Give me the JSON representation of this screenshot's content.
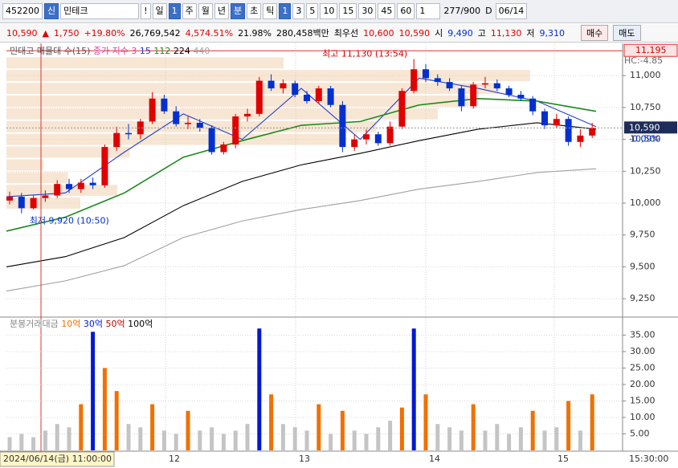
{
  "toolbar": {
    "code": "452200",
    "badge": "신",
    "name": "민테크",
    "alert": "!",
    "periods": [
      "일",
      "1",
      "주",
      "월",
      "년",
      "분",
      "초",
      "틱"
    ],
    "minutes": [
      "1",
      "3",
      "5",
      "10",
      "15",
      "30",
      "45",
      "60"
    ],
    "count": "1",
    "range": "277/900",
    "flag": "D",
    "date": "06/14"
  },
  "quote": {
    "price": "10,590",
    "arrow": "▲",
    "change": "1,750",
    "rate": "+19.80%",
    "volume": "26,769,542",
    "vol_rate": "4,574.51%",
    "turnover": "21.98%",
    "amount": "280,458백만",
    "best": "최우선",
    "ask": "10,600",
    "bid": "10,590",
    "open_label": "시",
    "open": "9,490",
    "high_label": "고",
    "high": "11,130",
    "low_label": "저",
    "low": "9,310",
    "buy": "매수",
    "sell": "매도"
  },
  "chart_data": [
    {
      "type": "candlestick",
      "title": "민대고 매물대 수(15)",
      "indicator_labels": [
        "종가 지수",
        "3"
      ],
      "open": [
        10020,
        10050,
        9960,
        10040,
        10060,
        10150,
        10110,
        10160,
        10140,
        10440,
        10550,
        10540,
        10640,
        10820,
        10720,
        10620,
        10630,
        10590,
        10400,
        10460,
        10680,
        10700,
        10960,
        10900,
        10940,
        10850,
        10800,
        10900,
        10770,
        10440,
        10500,
        10540,
        10470,
        10600,
        10880,
        11050,
        10980,
        10950,
        10900,
        10760,
        10930,
        10940,
        10900,
        10850,
        10820,
        10720,
        10610,
        10660,
        10480,
        10530
      ],
      "high": [
        10090,
        10080,
        10060,
        10100,
        10180,
        10190,
        10190,
        10200,
        10460,
        10600,
        10620,
        10660,
        10870,
        10850,
        10760,
        10680,
        10660,
        10610,
        10480,
        10700,
        10740,
        10990,
        11010,
        10970,
        10960,
        10880,
        10920,
        10920,
        10800,
        10540,
        10580,
        10560,
        10640,
        10900,
        11130,
        11090,
        11010,
        10980,
        10920,
        10950,
        10990,
        10970,
        10920,
        10880,
        10840,
        10740,
        10700,
        10680,
        10580,
        10630
      ],
      "low": [
        9990,
        9920,
        9950,
        10010,
        10040,
        10080,
        10080,
        10110,
        10120,
        10410,
        10500,
        10500,
        10620,
        10700,
        10600,
        10580,
        10560,
        10380,
        10380,
        10430,
        10640,
        10680,
        10880,
        10860,
        10830,
        10780,
        10780,
        10750,
        10400,
        10410,
        10460,
        10450,
        10450,
        10580,
        10860,
        10950,
        10920,
        10880,
        10720,
        10740,
        10900,
        10880,
        10830,
        10800,
        10690,
        10580,
        10590,
        10450,
        10440,
        10510
      ],
      "close": [
        10050,
        9960,
        10040,
        10060,
        10150,
        10110,
        10160,
        10140,
        10440,
        10550,
        10540,
        10640,
        10820,
        10720,
        10620,
        10630,
        10590,
        10400,
        10460,
        10680,
        10700,
        10960,
        10900,
        10940,
        10850,
        10800,
        10900,
        10770,
        10440,
        10500,
        10540,
        10470,
        10600,
        10880,
        11050,
        10980,
        10950,
        10900,
        10760,
        10930,
        10940,
        10900,
        10850,
        10820,
        10720,
        10610,
        10660,
        10480,
        10530,
        10590
      ],
      "up_color": "#e00000",
      "down_color": "#0030d0",
      "series": [
        {
          "name": "15",
          "color": "#2040d0",
          "values": [
            10050,
            10080,
            10400,
            10700,
            10500,
            10900,
            10500,
            10980,
            10900,
            10800,
            10600
          ]
        },
        {
          "name": "112",
          "color": "#1a8a1a",
          "values": [
            9780,
            9890,
            10080,
            10360,
            10490,
            10610,
            10640,
            10770,
            10820,
            10800,
            10720
          ]
        },
        {
          "name": "224",
          "color": "#000000",
          "values": [
            9500,
            9580,
            9730,
            9980,
            10170,
            10300,
            10390,
            10490,
            10580,
            10630,
            10580
          ]
        },
        {
          "name": "440",
          "color": "#a0a0a0",
          "values": [
            9310,
            9390,
            9510,
            9730,
            9860,
            9950,
            10020,
            10110,
            10170,
            10240,
            10270
          ]
        }
      ],
      "profile_bins": [
        9950,
        10050,
        10150,
        10250,
        10350,
        10450,
        10550,
        10650,
        10750,
        10850,
        10950,
        11050,
        11150
      ],
      "profile_values": [
        12,
        18,
        10,
        6,
        20,
        55,
        60,
        70,
        75,
        80,
        85,
        45
      ],
      "profile_color": "#f7e6d3",
      "ylim": [
        9106,
        11228
      ],
      "yticks": [
        {
          "value": 9250,
          "label": "9,250"
        },
        {
          "value": 9500,
          "label": "9,500"
        },
        {
          "value": 9750,
          "label": "9,750"
        },
        {
          "value": 10000,
          "label": "10,000"
        },
        {
          "value": 10250,
          "label": "10,250"
        },
        {
          "value": 10500,
          "label": "10,500"
        },
        {
          "value": 10750,
          "label": "10,750"
        },
        {
          "value": 11000,
          "label": "11,000"
        }
      ],
      "grid": true,
      "annotations": [
        "최고 11,130 (13:54)",
        "최저 9,920 (10:50)"
      ],
      "last_price": {
        "value": 10590,
        "label": "10,590"
      },
      "last_change": "-0.09%",
      "top_line": {
        "value": 11195,
        "label": "11,195"
      },
      "hc_label": "HC:-4.85"
    },
    {
      "type": "bar",
      "title": "분봉거래대금",
      "thresholds": [
        {
          "label": "10억",
          "value": 10,
          "color": "#f07000"
        },
        {
          "label": "30억",
          "value": 30,
          "color": "#0018d0"
        },
        {
          "label": "50억",
          "value": 50,
          "color": "#c00000"
        },
        {
          "label": "100억",
          "value": 100,
          "color": "#000000"
        }
      ],
      "base_color": "#c4c4c4",
      "values": [
        4,
        5,
        4,
        6,
        8,
        7,
        14,
        36,
        25,
        18,
        8,
        7,
        14,
        6,
        5,
        12,
        6,
        7,
        5,
        6,
        8,
        37,
        17,
        8,
        7,
        6,
        14,
        5,
        12,
        6,
        5,
        7,
        9,
        13,
        37,
        17,
        8,
        7,
        6,
        14,
        6,
        8,
        5,
        7,
        12,
        6,
        7,
        15,
        6,
        17
      ],
      "ylim": [
        0,
        39.5
      ],
      "yticks": [
        {
          "value": 5,
          "label": "5.00"
        },
        {
          "value": 10,
          "label": "10.00"
        },
        {
          "value": 15,
          "label": "15.00"
        },
        {
          "value": 20,
          "label": "20.00"
        },
        {
          "value": 25,
          "label": "25.00"
        },
        {
          "value": 30,
          "label": "30.00"
        },
        {
          "value": 35,
          "label": "35.00"
        }
      ]
    }
  ],
  "xaxis": {
    "cursor_label": "2024/06/14(금) 11:00:00",
    "day_labels": [
      "12",
      "13",
      "14",
      "15"
    ],
    "end_label": "15:30:00"
  }
}
